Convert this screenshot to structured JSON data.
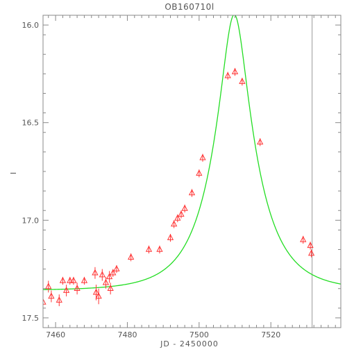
{
  "chart_data": {
    "type": "scatter",
    "title": "OB160710l",
    "xlabel": "JD - 2450000",
    "ylabel": "I",
    "xlim": [
      7456.5,
      7539.5
    ],
    "ylim": [
      17.55,
      15.95
    ],
    "y_inverted": true,
    "x_ticks": [
      7460,
      7480,
      7500,
      7520
    ],
    "x_tick_labels": [
      "7460",
      "7480",
      "7500",
      "7520"
    ],
    "y_ticks": [
      16.0,
      16.5,
      17.0,
      17.5
    ],
    "y_tick_labels": [
      "16.0",
      "16.5",
      "17.0",
      "17.5"
    ],
    "vertical_line_x": 7531.5,
    "colors": {
      "points": "#ff3333",
      "model": "#22dd22",
      "axes": "#888888",
      "marker_line": "#999999"
    },
    "model": {
      "t0": 7509.8,
      "u0": 0.28,
      "tE": 12.0,
      "baseline": 17.36
    },
    "series": [
      {
        "marker": "triangle",
        "x": [
          7456.5,
          7458.0,
          7458.8,
          7461.0,
          7462.0,
          7463.0,
          7464.0,
          7465.0,
          7466.0,
          7468.0,
          7471.0,
          7471.3,
          7472.0,
          7473.0,
          7474.0,
          7475.0,
          7475.3,
          7476.0,
          7477.0,
          7481.0,
          7486.0,
          7489.0,
          7492.0,
          7493.0,
          7494.0,
          7495.0,
          7496.0,
          7498.0,
          7500.0,
          7501.0,
          7508.0,
          7510.0,
          7512.0,
          7517.0,
          7529.0,
          7531.0,
          7531.3
        ],
        "y": [
          17.42,
          17.34,
          17.39,
          17.41,
          17.31,
          17.36,
          17.31,
          17.31,
          17.35,
          17.31,
          17.27,
          17.37,
          17.39,
          17.28,
          17.32,
          17.29,
          17.35,
          17.27,
          17.25,
          17.19,
          17.15,
          17.15,
          17.09,
          17.02,
          16.99,
          16.97,
          16.94,
          16.86,
          16.76,
          16.68,
          16.26,
          16.24,
          16.29,
          16.6,
          17.1,
          17.13,
          17.17
        ],
        "err": [
          0.05,
          0.03,
          0.03,
          0.03,
          0.02,
          0.03,
          0.02,
          0.02,
          0.03,
          0.02,
          0.03,
          0.04,
          0.04,
          0.03,
          0.03,
          0.03,
          0.03,
          0.02,
          0.02,
          0.02,
          0.02,
          0.02,
          0.02,
          0.02,
          0.02,
          0.02,
          0.02,
          0.02,
          0.02,
          0.02,
          0.02,
          0.02,
          0.02,
          0.02,
          0.02,
          0.02,
          0.02
        ]
      }
    ]
  }
}
